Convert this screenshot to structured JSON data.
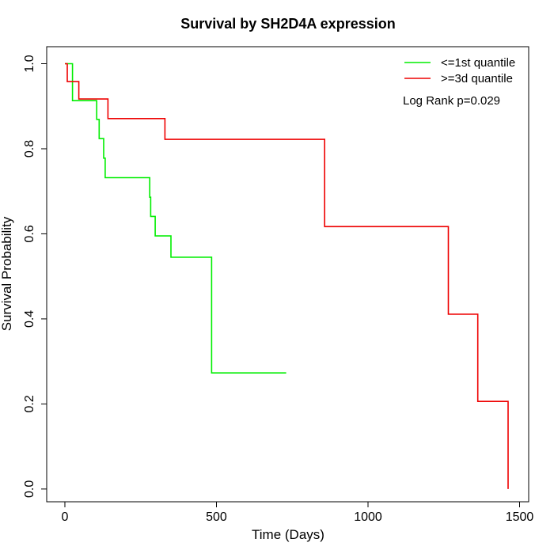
{
  "chart_data": {
    "type": "line",
    "title": "Survival by SH2D4A expression",
    "xlabel": "Time (Days)",
    "ylabel": "Survival Probability",
    "xlim": [
      -60,
      1530
    ],
    "ylim": [
      -0.03,
      1.04
    ],
    "x_ticks": [
      0,
      500,
      1000,
      1500
    ],
    "y_ticks": [
      0.0,
      0.2,
      0.4,
      0.6,
      0.8,
      1.0
    ],
    "x_tick_labels": [
      "0",
      "500",
      "1000",
      "1500"
    ],
    "y_tick_labels": [
      "0.0",
      "0.2",
      "0.4",
      "0.6",
      "0.8",
      "1.0"
    ],
    "grid": false,
    "legend_position": "top-right",
    "annotation": "Log Rank p=0.029",
    "series": [
      {
        "name": "<=1st quantile",
        "color": "#00ee00",
        "step": true,
        "points": [
          [
            0,
            1.0
          ],
          [
            25,
            1.0
          ],
          [
            25,
            0.913
          ],
          [
            105,
            0.913
          ],
          [
            105,
            0.869
          ],
          [
            113,
            0.869
          ],
          [
            113,
            0.824
          ],
          [
            128,
            0.824
          ],
          [
            128,
            0.778
          ],
          [
            133,
            0.778
          ],
          [
            133,
            0.732
          ],
          [
            280,
            0.732
          ],
          [
            280,
            0.686
          ],
          [
            283,
            0.686
          ],
          [
            283,
            0.641
          ],
          [
            298,
            0.641
          ],
          [
            298,
            0.595
          ],
          [
            350,
            0.595
          ],
          [
            350,
            0.545
          ],
          [
            484,
            0.545
          ],
          [
            484,
            0.273
          ],
          [
            730,
            0.273
          ]
        ]
      },
      {
        "name": ">=3d quantile",
        "color": "#ee0000",
        "step": true,
        "points": [
          [
            0,
            1.0
          ],
          [
            8,
            1.0
          ],
          [
            8,
            0.958
          ],
          [
            46,
            0.958
          ],
          [
            46,
            0.917
          ],
          [
            142,
            0.917
          ],
          [
            142,
            0.871
          ],
          [
            330,
            0.871
          ],
          [
            330,
            0.822
          ],
          [
            857,
            0.822
          ],
          [
            857,
            0.617
          ],
          [
            1265,
            0.617
          ],
          [
            1265,
            0.411
          ],
          [
            1362,
            0.411
          ],
          [
            1362,
            0.206
          ],
          [
            1462,
            0.206
          ],
          [
            1462,
            0.0
          ]
        ]
      }
    ]
  }
}
